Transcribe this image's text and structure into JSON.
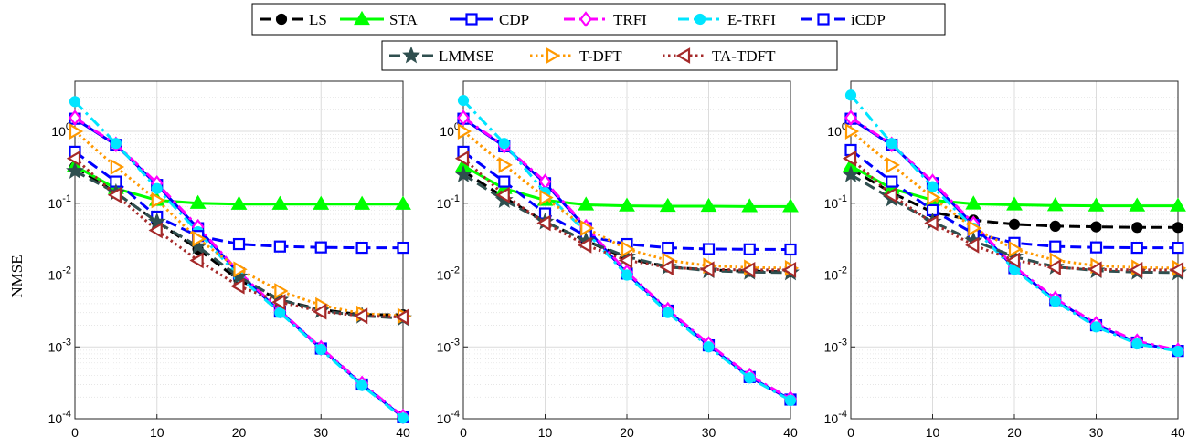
{
  "figure": {
    "ylabel": "NMSE",
    "legend": {
      "row1": [
        "LS",
        "STA",
        "CDP",
        "TRFI",
        "E-TRFI",
        "iCDP"
      ],
      "row2": [
        "LMMSE",
        "T-DFT",
        "TA-TDFT"
      ],
      "placement": "top-center"
    }
  },
  "chart_data": [
    {
      "type": "line",
      "panel": "left",
      "yscale": "log",
      "xlim": [
        0,
        40
      ],
      "ylim": [
        0.0001,
        5
      ],
      "grid": true,
      "x": [
        0,
        5,
        10,
        15,
        20,
        25,
        30,
        35,
        40
      ],
      "xticks": [
        "0",
        "10",
        "20",
        "30",
        "40"
      ],
      "yticks": [
        "10^0",
        "10^-1",
        "10^-2",
        "10^-3",
        "10^-4"
      ],
      "ylabel": "NMSE",
      "series": [
        {
          "name": "LS",
          "values": [
            0.32,
            0.14,
            0.055,
            0.023,
            0.0085,
            0.0045,
            0.0033,
            0.0028,
            0.0028
          ]
        },
        {
          "name": "STA",
          "values": [
            0.33,
            0.16,
            0.11,
            0.1,
            0.097,
            0.097,
            0.097,
            0.097,
            0.097
          ]
        },
        {
          "name": "CDP",
          "values": [
            1.5,
            0.65,
            0.18,
            0.045,
            0.0105,
            0.0031,
            0.00095,
            0.0003,
            0.000105
          ]
        },
        {
          "name": "TRFI",
          "values": [
            1.55,
            0.66,
            0.19,
            0.047,
            0.011,
            0.0032,
            0.00097,
            0.00031,
            0.000108
          ]
        },
        {
          "name": "E-TRFI",
          "values": [
            2.6,
            0.68,
            0.16,
            0.04,
            0.0095,
            0.003,
            0.00092,
            0.00029,
            0.000102
          ]
        },
        {
          "name": "iCDP",
          "values": [
            0.52,
            0.2,
            0.065,
            0.035,
            0.027,
            0.025,
            0.0243,
            0.024,
            0.024
          ]
        },
        {
          "name": "LMMSE",
          "values": [
            0.28,
            0.14,
            0.055,
            0.025,
            0.0095,
            0.0045,
            0.0032,
            0.0027,
            0.0025
          ]
        },
        {
          "name": "T-DFT",
          "values": [
            1.0,
            0.32,
            0.11,
            0.032,
            0.012,
            0.006,
            0.0038,
            0.0029,
            0.0027
          ]
        },
        {
          "name": "TA-TDFT",
          "values": [
            0.42,
            0.13,
            0.042,
            0.016,
            0.007,
            0.0042,
            0.0031,
            0.0027,
            0.0026
          ]
        }
      ]
    },
    {
      "type": "line",
      "panel": "middle",
      "yscale": "log",
      "xlim": [
        0,
        40
      ],
      "ylim": [
        0.0001,
        5
      ],
      "grid": true,
      "x": [
        0,
        5,
        10,
        15,
        20,
        25,
        30,
        35,
        40
      ],
      "xticks": [
        "0",
        "10",
        "20",
        "30",
        "40"
      ],
      "yticks": [
        "10^0",
        "10^-1",
        "10^-2",
        "10^-3",
        "10^-4"
      ],
      "series": [
        {
          "name": "LS",
          "values": [
            0.28,
            0.12,
            0.055,
            0.03,
            0.017,
            0.013,
            0.0118,
            0.0113,
            0.0111
          ]
        },
        {
          "name": "STA",
          "values": [
            0.33,
            0.16,
            0.11,
            0.095,
            0.092,
            0.091,
            0.091,
            0.09,
            0.09
          ]
        },
        {
          "name": "CDP",
          "values": [
            1.5,
            0.62,
            0.19,
            0.045,
            0.0105,
            0.0032,
            0.00105,
            0.00038,
            0.000185
          ]
        },
        {
          "name": "TRFI",
          "values": [
            1.55,
            0.63,
            0.2,
            0.047,
            0.011,
            0.0033,
            0.0011,
            0.0004,
            0.00019
          ]
        },
        {
          "name": "E-TRFI",
          "values": [
            2.7,
            0.68,
            0.14,
            0.04,
            0.01,
            0.003,
            0.001,
            0.00037,
            0.00018
          ]
        },
        {
          "name": "iCDP",
          "values": [
            0.52,
            0.2,
            0.072,
            0.035,
            0.027,
            0.024,
            0.023,
            0.0228,
            0.0227
          ]
        },
        {
          "name": "LMMSE",
          "values": [
            0.25,
            0.11,
            0.055,
            0.03,
            0.018,
            0.013,
            0.0115,
            0.011,
            0.0108
          ]
        },
        {
          "name": "T-DFT",
          "values": [
            1.0,
            0.34,
            0.12,
            0.045,
            0.023,
            0.016,
            0.0135,
            0.0127,
            0.0125
          ]
        },
        {
          "name": "TA-TDFT",
          "values": [
            0.42,
            0.13,
            0.053,
            0.026,
            0.016,
            0.0128,
            0.012,
            0.0118,
            0.0118
          ]
        }
      ]
    },
    {
      "type": "line",
      "panel": "right",
      "yscale": "log",
      "xlim": [
        0,
        40
      ],
      "ylim": [
        0.0001,
        5
      ],
      "grid": true,
      "x": [
        0,
        5,
        10,
        15,
        20,
        25,
        30,
        35,
        40
      ],
      "xticks": [
        "0",
        "10",
        "20",
        "30",
        "40"
      ],
      "yticks": [
        "10^0",
        "10^-1",
        "10^-2",
        "10^-3",
        "10^-4"
      ],
      "series": [
        {
          "name": "LS",
          "values": [
            0.3,
            0.14,
            0.075,
            0.058,
            0.051,
            0.048,
            0.047,
            0.046,
            0.046
          ]
        },
        {
          "name": "STA",
          "values": [
            0.33,
            0.16,
            0.11,
            0.098,
            0.095,
            0.093,
            0.092,
            0.092,
            0.092
          ]
        },
        {
          "name": "CDP",
          "values": [
            1.5,
            0.65,
            0.19,
            0.05,
            0.0125,
            0.0045,
            0.002,
            0.00115,
            0.00088
          ]
        },
        {
          "name": "TRFI",
          "values": [
            1.55,
            0.66,
            0.2,
            0.052,
            0.013,
            0.0047,
            0.0021,
            0.0012,
            0.0009
          ]
        },
        {
          "name": "E-TRFI",
          "values": [
            3.2,
            0.68,
            0.17,
            0.045,
            0.012,
            0.0043,
            0.0019,
            0.0011,
            0.00087
          ]
        },
        {
          "name": "iCDP",
          "values": [
            0.55,
            0.2,
            0.08,
            0.038,
            0.028,
            0.025,
            0.0243,
            0.024,
            0.024
          ]
        },
        {
          "name": "LMMSE",
          "values": [
            0.25,
            0.115,
            0.055,
            0.03,
            0.018,
            0.013,
            0.0115,
            0.011,
            0.0108
          ]
        },
        {
          "name": "T-DFT",
          "values": [
            1.0,
            0.34,
            0.12,
            0.045,
            0.023,
            0.016,
            0.0135,
            0.0127,
            0.0125
          ]
        },
        {
          "name": "TA-TDFT",
          "values": [
            0.42,
            0.13,
            0.053,
            0.026,
            0.016,
            0.0128,
            0.012,
            0.0118,
            0.0118
          ]
        }
      ]
    }
  ],
  "styles": {
    "LS": {
      "color": "#000000",
      "dash": "dashed",
      "marker": "circle",
      "filled": true
    },
    "STA": {
      "color": "#00ff00",
      "dash": "solid",
      "marker": "triangle",
      "filled": true
    },
    "CDP": {
      "color": "#0000ff",
      "dash": "solid",
      "marker": "square",
      "filled": false
    },
    "TRFI": {
      "color": "#ff00ff",
      "dash": "dashdot",
      "marker": "diamond",
      "filled": false
    },
    "E-TRFI": {
      "color": "#00e5ff",
      "dash": "dashdot",
      "marker": "circle",
      "filled": true
    },
    "iCDP": {
      "color": "#0000ff",
      "dash": "dashed",
      "marker": "square",
      "filled": false
    },
    "LMMSE": {
      "color": "#2f4f4f",
      "dash": "dashed",
      "marker": "star",
      "filled": true
    },
    "T-DFT": {
      "color": "#ff9900",
      "dash": "dotted",
      "marker": "triangle-right",
      "filled": false
    },
    "TA-TDFT": {
      "color": "#a52a2a",
      "dash": "dotted",
      "marker": "triangle-left",
      "filled": false
    }
  }
}
